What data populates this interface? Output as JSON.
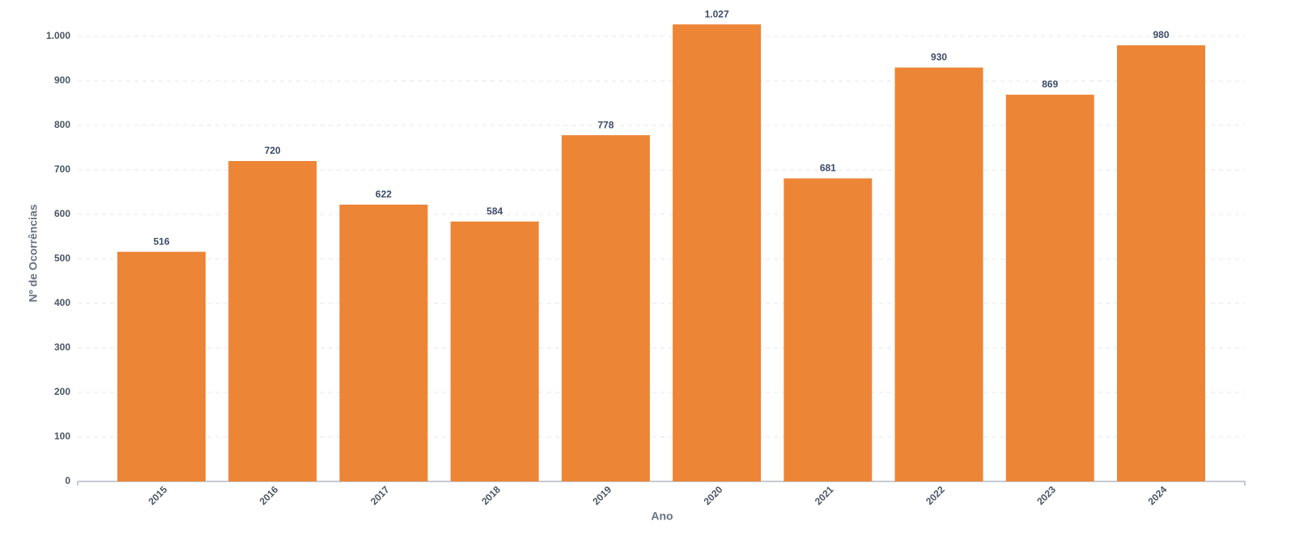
{
  "chart_data": {
    "type": "bar",
    "x_label": "Ano",
    "y_label": "Nº de Ocorrências",
    "categories": [
      "2015",
      "2016",
      "2017",
      "2018",
      "2019",
      "2020",
      "2021",
      "2022",
      "2023",
      "2024"
    ],
    "values": [
      516,
      720,
      622,
      584,
      778,
      1027,
      681,
      930,
      869,
      980
    ],
    "value_labels": [
      "516",
      "720",
      "622",
      "584",
      "778",
      "1.027",
      "681",
      "930",
      "869",
      "980"
    ],
    "color": "#ed8536",
    "ylim": [
      0,
      1050
    ],
    "yticks": [
      0,
      100,
      200,
      300,
      400,
      500,
      600,
      700,
      800,
      900,
      {
        "value": 1000,
        "label": "1.000"
      }
    ],
    "grid": true
  }
}
